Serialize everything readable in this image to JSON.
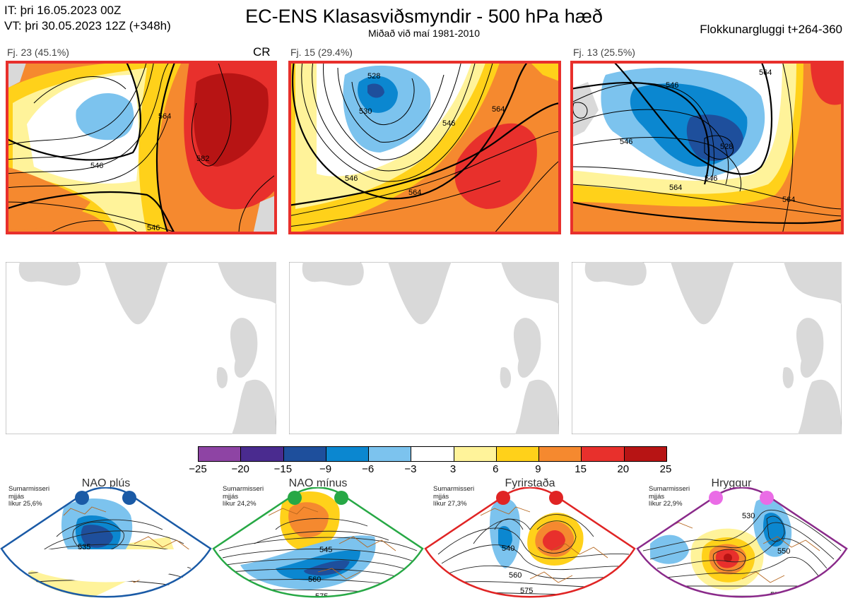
{
  "header": {
    "it_line": "IT: þri 16.05.2023 00Z",
    "vt_line": "VT: þri 30.05.2023 12Z  (+348h)",
    "title": "EC-ENS Klasasviðsmyndir - 500 hPa hæð",
    "subtitle": "Miðað við maí 1981-2010",
    "window": "Flokkunargluggi t+264-360"
  },
  "panels": [
    {
      "label": "Fj. 23 (45.1%)",
      "tag": "CR",
      "contours": [
        "546",
        "564",
        "582",
        "546",
        "564"
      ]
    },
    {
      "label": "Fj. 15 (29.4%)",
      "tag": "",
      "contours": [
        "528",
        "530",
        "546",
        "546",
        "564",
        "564"
      ]
    },
    {
      "label": "Fj. 13 (25.5%)",
      "tag": "",
      "contours": [
        "546",
        "546",
        "528",
        "546",
        "564",
        "564",
        "564",
        "546"
      ]
    }
  ],
  "colorbar": {
    "ticks": [
      "−25",
      "−20",
      "−15",
      "−9",
      "−6",
      "−3",
      "3",
      "6",
      "9",
      "15",
      "20",
      "25"
    ],
    "colors": [
      "#8e44a4",
      "#4a2b8f",
      "#1e4f9c",
      "#0b87d0",
      "#7cc3ee",
      "#ffffff",
      "#fff39a",
      "#ffd11a",
      "#f5892f",
      "#e8302c",
      "#b71414"
    ]
  },
  "regimes": [
    {
      "name": "NAO plús",
      "note1": "Sumarmisseri",
      "note2": "mjjás",
      "note3": "líkur 25,6%",
      "color": "#1a5aa6",
      "dot": "#1a5aa6",
      "contours": [
        "535",
        "560"
      ]
    },
    {
      "name": "NAO mínus",
      "note1": "Sumarmisseri",
      "note2": "mjjás",
      "note3": "líkur 24,2%",
      "color": "#27a845",
      "dot": "#27a845",
      "contours": [
        "545",
        "560",
        "575"
      ]
    },
    {
      "name": "Fyrirstaða",
      "note1": "Sumarmisseri",
      "note2": "mjjás",
      "note3": "líkur 27,3%",
      "color": "#e02424",
      "dot": "#e02424",
      "contours": [
        "540",
        "560",
        "575"
      ]
    },
    {
      "name": "Hryggur",
      "note1": "Sumarmisseri",
      "note2": "mjjás",
      "note3": "líkur 22,9%",
      "color": "#8a2a8a",
      "dot": "#ea6ce6",
      "contours": [
        "530",
        "550",
        "575"
      ]
    }
  ]
}
